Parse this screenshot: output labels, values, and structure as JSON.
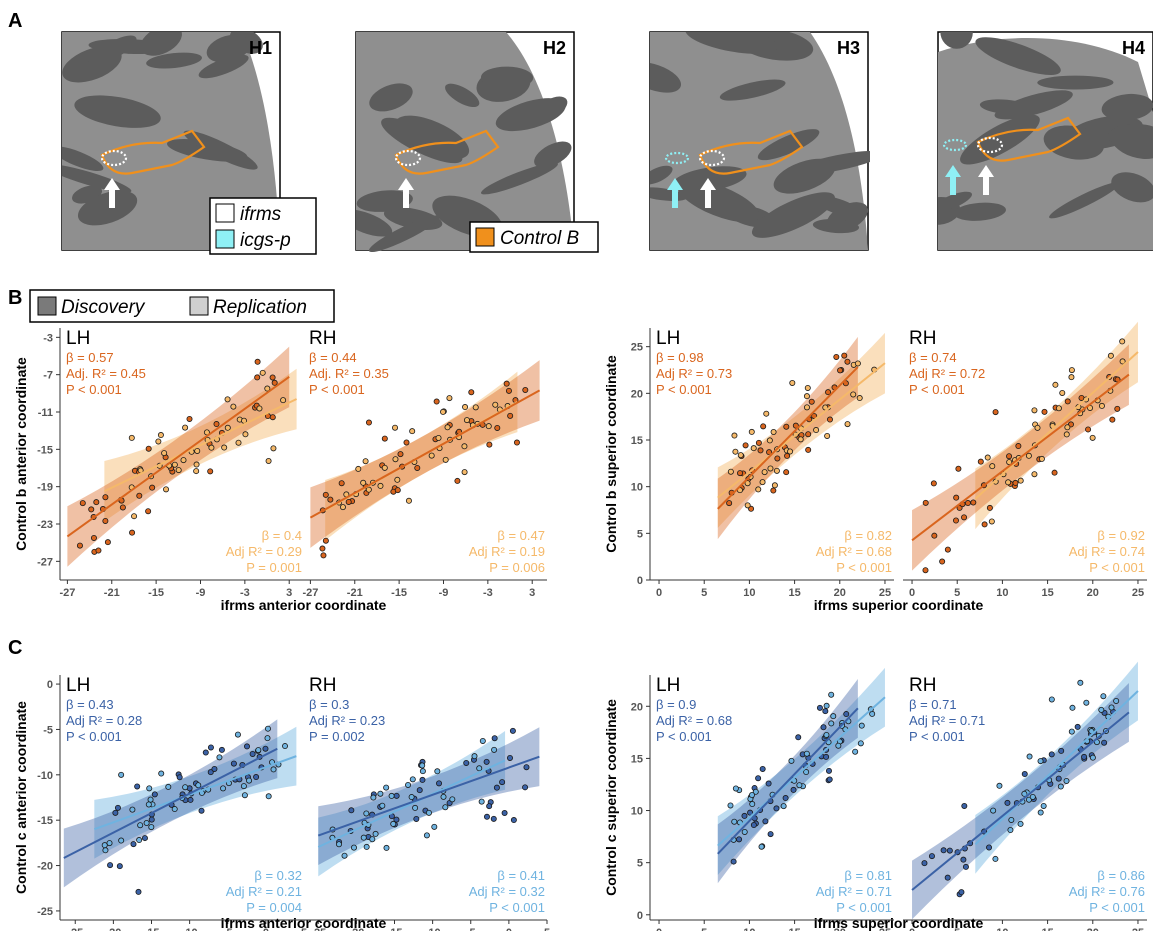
{
  "panel_labels": {
    "a": "A",
    "b": "B",
    "c": "C"
  },
  "brains": [
    {
      "label": "H1",
      "arrows": [
        "white"
      ]
    },
    {
      "label": "H2",
      "arrows": [
        "white"
      ]
    },
    {
      "label": "H3",
      "arrows": [
        "cyan",
        "white"
      ]
    },
    {
      "label": "H4",
      "arrows": [
        "cyan",
        "white"
      ]
    }
  ],
  "brain_legends": {
    "h1": [
      {
        "text": "ifrms",
        "swatch": "#ffffff"
      },
      {
        "text": "icgs-p",
        "swatch": "#8ff0f5"
      }
    ],
    "h2": [
      {
        "text": "Control B",
        "swatch": "#f0901c"
      }
    ]
  },
  "sample_legend": [
    {
      "text": "Discovery",
      "swatch": "#7a7a7a"
    },
    {
      "text": "Replication",
      "swatch": "#cfcfcf"
    }
  ],
  "colors": {
    "b_discovery": "#d9651e",
    "b_replication": "#f5b96a",
    "c_discovery": "#3b62a6",
    "c_replication": "#6fb3e0",
    "sulcus_dark": "#5c5c5c",
    "gyrus_light": "#8f8f8f"
  },
  "chart_data": [
    {
      "id": "B-anterior",
      "type": "scatter",
      "xlabel": "ifrms anterior coordinate",
      "ylabel": "Control b anterior coordinate",
      "xlim": [
        -28,
        5
      ],
      "ylim": [
        -29,
        -2
      ],
      "xticks": [
        -27,
        -21,
        -15,
        -9,
        -3,
        3
      ],
      "yticks": [
        -27,
        -23,
        -19,
        -15,
        -11,
        -7,
        -3
      ],
      "panels": [
        {
          "title": "LH",
          "discovery": {
            "stats": {
              "beta": "β = 0.57",
              "r2": "Adj. R² = 0.45",
              "p": "P < 0.001"
            },
            "x_range": [
              -27,
              3
            ]
          },
          "replication": {
            "stats": {
              "beta": "β = 0.4",
              "r2": "Adj R² = 0.29",
              "p": "P = 0.001"
            },
            "x_range": [
              -22,
              4
            ]
          }
        },
        {
          "title": "RH",
          "discovery": {
            "stats": {
              "beta": "β = 0.44",
              "r2": "Adj. R² = 0.35",
              "p": "P < 0.001"
            },
            "x_range": [
              -27,
              4
            ]
          },
          "replication": {
            "stats": {
              "beta": "β = 0.47",
              "r2": "Adj R² = 0.19",
              "p": "P = 0.006"
            },
            "x_range": [
              -25,
              1
            ]
          }
        }
      ]
    },
    {
      "id": "B-superior",
      "type": "scatter",
      "xlabel": "ifrms superior coordinate",
      "ylabel": "Control b superior coordinate",
      "xlim": [
        -1,
        26
      ],
      "ylim": [
        0,
        27
      ],
      "xticks": [
        0,
        5,
        10,
        15,
        20,
        25
      ],
      "yticks": [
        0,
        5,
        10,
        15,
        20,
        25
      ],
      "panels": [
        {
          "title": "LH",
          "discovery": {
            "stats": {
              "beta": "β = 0.98",
              "r2": "Adj R² = 0.73",
              "p": "P < 0.001"
            },
            "x_range": [
              6.5,
              22
            ]
          },
          "replication": {
            "stats": {
              "beta": "β = 0.82",
              "r2": "Adj R² = 0.68",
              "p": "P < 0.001"
            },
            "x_range": [
              6.5,
              25
            ]
          }
        },
        {
          "title": "RH",
          "discovery": {
            "stats": {
              "beta": "β = 0.74",
              "r2": "Adj R² = 0.72",
              "p": "P < 0.001"
            },
            "x_range": [
              0,
              24
            ]
          },
          "replication": {
            "stats": {
              "beta": "β = 0.92",
              "r2": "Adj R² = 0.74",
              "p": "P < 0.001"
            },
            "x_range": [
              7,
              25
            ]
          }
        }
      ]
    },
    {
      "id": "C-anterior",
      "type": "scatter",
      "xlabel": "ifrms anterior coordinate",
      "ylabel": "Control c anterior coordinate",
      "xlim": [
        -27,
        5
      ],
      "ylim": [
        -26,
        1
      ],
      "xticks": [
        -25,
        -20,
        -15,
        -10,
        -5,
        0,
        5
      ],
      "yticks": [
        -25,
        -20,
        -15,
        -10,
        -5,
        0
      ],
      "panels": [
        {
          "title": "LH",
          "discovery": {
            "stats": {
              "beta": "β = 0.43",
              "r2": "Adj R² = 0.28",
              "p": "P < 0.001"
            },
            "x_range": [
              -26.5,
              1.5
            ]
          },
          "replication": {
            "stats": {
              "beta": "β = 0.32",
              "r2": "Adj R² = 0.21",
              "p": "P = 0.004"
            },
            "x_range": [
              -22.5,
              4
            ]
          }
        },
        {
          "title": "RH",
          "discovery": {
            "stats": {
              "beta": "β = 0.3",
              "r2": "Adj R² = 0.23",
              "p": "P = 0.002"
            },
            "x_range": [
              -25,
              4
            ]
          },
          "replication": {
            "stats": {
              "beta": "β = 0.41",
              "r2": "Adj R² = 0.32",
              "p": "P < 0.001"
            },
            "x_range": [
              -25,
              -0.5
            ]
          }
        }
      ]
    },
    {
      "id": "C-superior",
      "type": "scatter",
      "xlabel": "ifrms superior coordinate",
      "ylabel": "Control c superior coordinate",
      "xlim": [
        -1,
        26
      ],
      "ylim": [
        -0.5,
        23
      ],
      "xticks": [
        0,
        5,
        10,
        15,
        20,
        25
      ],
      "yticks": [
        0,
        5,
        10,
        15,
        20
      ],
      "panels": [
        {
          "title": "LH",
          "discovery": {
            "stats": {
              "beta": "β = 0.9",
              "r2": "Adj R² = 0.68",
              "p": "P < 0.001"
            },
            "x_range": [
              6.5,
              22
            ]
          },
          "replication": {
            "stats": {
              "beta": "β = 0.81",
              "r2": "Adj R² = 0.71",
              "p": "P < 0.001"
            },
            "x_range": [
              6.5,
              25
            ]
          }
        },
        {
          "title": "RH",
          "discovery": {
            "stats": {
              "beta": "β = 0.71",
              "r2": "Adj R² = 0.71",
              "p": "P < 0.001"
            },
            "x_range": [
              0,
              24
            ]
          },
          "replication": {
            "stats": {
              "beta": "β = 0.86",
              "r2": "Adj R² = 0.76",
              "p": "P < 0.001"
            },
            "x_range": [
              7,
              25
            ]
          }
        }
      ]
    }
  ]
}
